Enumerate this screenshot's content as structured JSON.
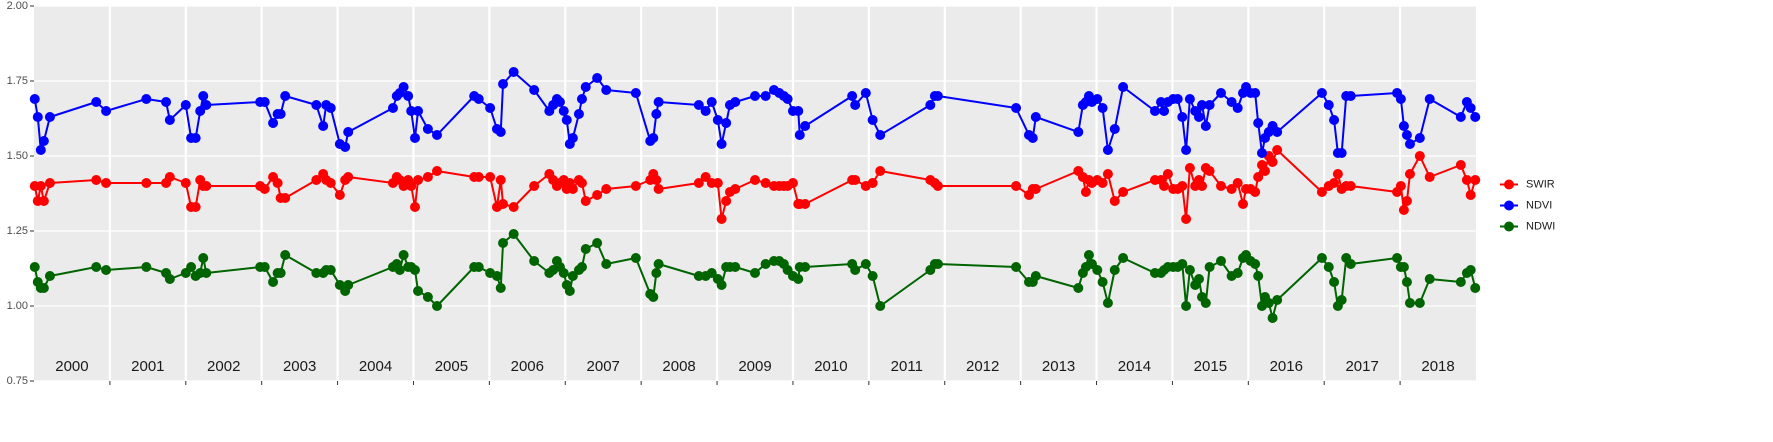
{
  "chart_data": {
    "type": "line",
    "x": [
      2000.01,
      2000.05,
      2000.09,
      2000.13,
      2000.21,
      2000.82,
      2000.95,
      2001.48,
      2001.74,
      2001.79,
      2002.0,
      2002.07,
      2002.13,
      2002.19,
      2002.23,
      2002.27,
      2002.98,
      2003.04,
      2003.15,
      2003.21,
      2003.25,
      2003.31,
      2003.72,
      2003.81,
      2003.85,
      2003.91,
      2004.03,
      2004.1,
      2004.14,
      2004.73,
      2004.78,
      2004.82,
      2004.87,
      2004.93,
      2004.97,
      2005.02,
      2005.06,
      2005.19,
      2005.31,
      2005.8,
      2005.86,
      2006.01,
      2006.1,
      2006.15,
      2006.18,
      2006.32,
      2006.59,
      2006.79,
      2006.84,
      2006.89,
      2006.93,
      2006.98,
      2007.02,
      2007.06,
      2007.1,
      2007.18,
      2007.22,
      2007.27,
      2007.42,
      2007.54,
      2007.93,
      2008.12,
      2008.16,
      2008.2,
      2008.23,
      2008.76,
      2008.85,
      2008.93,
      2009.01,
      2009.06,
      2009.12,
      2009.17,
      2009.24,
      2009.5,
      2009.64,
      2009.75,
      2009.82,
      2009.88,
      2009.93,
      2010.0,
      2010.07,
      2010.09,
      2010.16,
      2010.78,
      2010.82,
      2010.96,
      2011.05,
      2011.15,
      2011.81,
      2011.87,
      2011.91,
      2012.94,
      2013.11,
      2013.16,
      2013.2,
      2013.76,
      2013.82,
      2013.86,
      2013.9,
      2013.94,
      2014.01,
      2014.08,
      2014.15,
      2014.24,
      2014.35,
      2014.77,
      2014.85,
      2014.89,
      2014.94,
      2015.01,
      2015.07,
      2015.13,
      2015.18,
      2015.23,
      2015.3,
      2015.35,
      2015.39,
      2015.44,
      2015.49,
      2015.64,
      2015.78,
      2015.86,
      2015.93,
      2015.97,
      2016.03,
      2016.09,
      2016.13,
      2016.18,
      2016.22,
      2016.27,
      2016.32,
      2016.38,
      2016.97,
      2017.06,
      2017.13,
      2017.18,
      2017.23,
      2017.29,
      2017.35,
      2017.96,
      2018.01,
      2018.05,
      2018.09,
      2018.13,
      2018.26,
      2018.39,
      2018.8,
      2018.88,
      2018.93,
      2018.99
    ],
    "series": [
      {
        "name": "SWIR",
        "color": "#ff0000",
        "values": [
          1.4,
          1.35,
          1.4,
          1.35,
          1.41,
          1.42,
          1.41,
          1.41,
          1.41,
          1.43,
          1.41,
          1.33,
          1.33,
          1.42,
          1.4,
          1.4,
          1.4,
          1.39,
          1.43,
          1.41,
          1.36,
          1.36,
          1.42,
          1.44,
          1.42,
          1.41,
          1.37,
          1.42,
          1.43,
          1.41,
          1.43,
          1.42,
          1.4,
          1.42,
          1.4,
          1.33,
          1.42,
          1.43,
          1.45,
          1.43,
          1.43,
          1.43,
          1.33,
          1.42,
          1.34,
          1.33,
          1.4,
          1.44,
          1.42,
          1.4,
          1.41,
          1.42,
          1.39,
          1.41,
          1.39,
          1.42,
          1.41,
          1.35,
          1.37,
          1.39,
          1.4,
          1.42,
          1.44,
          1.42,
          1.39,
          1.41,
          1.43,
          1.41,
          1.41,
          1.29,
          1.35,
          1.38,
          1.39,
          1.42,
          1.41,
          1.4,
          1.4,
          1.4,
          1.4,
          1.41,
          1.34,
          1.34,
          1.34,
          1.42,
          1.42,
          1.4,
          1.41,
          1.45,
          1.42,
          1.41,
          1.4,
          1.4,
          1.37,
          1.39,
          1.39,
          1.45,
          1.43,
          1.38,
          1.42,
          1.41,
          1.42,
          1.41,
          1.44,
          1.35,
          1.38,
          1.42,
          1.42,
          1.4,
          1.44,
          1.39,
          1.39,
          1.4,
          1.29,
          1.46,
          1.4,
          1.42,
          1.4,
          1.46,
          1.45,
          1.4,
          1.39,
          1.41,
          1.34,
          1.39,
          1.39,
          1.38,
          1.43,
          1.47,
          1.45,
          1.5,
          1.48,
          1.52,
          1.38,
          1.4,
          1.41,
          1.44,
          1.39,
          1.4,
          1.4,
          1.38,
          1.4,
          1.32,
          1.35,
          1.44,
          1.5,
          1.43,
          1.47,
          1.42,
          1.37,
          1.42
        ]
      },
      {
        "name": "NDVI",
        "color": "#0000ff",
        "values": [
          1.69,
          1.63,
          1.52,
          1.55,
          1.63,
          1.68,
          1.65,
          1.69,
          1.68,
          1.62,
          1.67,
          1.56,
          1.56,
          1.65,
          1.7,
          1.67,
          1.68,
          1.68,
          1.61,
          1.64,
          1.64,
          1.7,
          1.67,
          1.6,
          1.67,
          1.66,
          1.54,
          1.53,
          1.58,
          1.66,
          1.7,
          1.71,
          1.73,
          1.7,
          1.65,
          1.56,
          1.65,
          1.59,
          1.57,
          1.7,
          1.69,
          1.66,
          1.59,
          1.58,
          1.74,
          1.78,
          1.72,
          1.65,
          1.67,
          1.69,
          1.68,
          1.65,
          1.62,
          1.54,
          1.56,
          1.64,
          1.69,
          1.73,
          1.76,
          1.72,
          1.71,
          1.55,
          1.56,
          1.64,
          1.68,
          1.67,
          1.65,
          1.68,
          1.62,
          1.54,
          1.61,
          1.67,
          1.68,
          1.7,
          1.7,
          1.72,
          1.71,
          1.7,
          1.69,
          1.65,
          1.65,
          1.57,
          1.6,
          1.7,
          1.67,
          1.71,
          1.62,
          1.57,
          1.67,
          1.7,
          1.7,
          1.66,
          1.57,
          1.56,
          1.63,
          1.58,
          1.67,
          1.68,
          1.7,
          1.68,
          1.69,
          1.66,
          1.52,
          1.59,
          1.73,
          1.65,
          1.68,
          1.65,
          1.68,
          1.69,
          1.69,
          1.63,
          1.52,
          1.69,
          1.65,
          1.63,
          1.67,
          1.6,
          1.67,
          1.71,
          1.68,
          1.66,
          1.71,
          1.73,
          1.71,
          1.71,
          1.61,
          1.51,
          1.56,
          1.58,
          1.6,
          1.58,
          1.71,
          1.67,
          1.62,
          1.51,
          1.51,
          1.7,
          1.7,
          1.71,
          1.69,
          1.6,
          1.57,
          1.54,
          1.56,
          1.69,
          1.63,
          1.68,
          1.66,
          1.63
        ]
      },
      {
        "name": "NDWI",
        "color": "#006400",
        "values": [
          1.13,
          1.08,
          1.06,
          1.06,
          1.1,
          1.13,
          1.12,
          1.13,
          1.11,
          1.09,
          1.11,
          1.13,
          1.1,
          1.11,
          1.16,
          1.11,
          1.13,
          1.13,
          1.08,
          1.11,
          1.11,
          1.17,
          1.11,
          1.11,
          1.12,
          1.12,
          1.07,
          1.05,
          1.07,
          1.13,
          1.14,
          1.12,
          1.17,
          1.13,
          1.13,
          1.12,
          1.05,
          1.03,
          1.0,
          1.13,
          1.13,
          1.11,
          1.1,
          1.06,
          1.21,
          1.24,
          1.15,
          1.11,
          1.12,
          1.15,
          1.13,
          1.11,
          1.07,
          1.05,
          1.1,
          1.12,
          1.13,
          1.19,
          1.21,
          1.14,
          1.16,
          1.04,
          1.03,
          1.11,
          1.14,
          1.1,
          1.1,
          1.11,
          1.09,
          1.07,
          1.13,
          1.13,
          1.13,
          1.11,
          1.14,
          1.15,
          1.15,
          1.14,
          1.12,
          1.1,
          1.09,
          1.13,
          1.13,
          1.14,
          1.12,
          1.14,
          1.1,
          1.0,
          1.12,
          1.14,
          1.14,
          1.13,
          1.08,
          1.08,
          1.1,
          1.06,
          1.11,
          1.13,
          1.17,
          1.14,
          1.12,
          1.08,
          1.01,
          1.12,
          1.16,
          1.11,
          1.11,
          1.12,
          1.13,
          1.13,
          1.13,
          1.14,
          1.0,
          1.12,
          1.07,
          1.09,
          1.03,
          1.01,
          1.13,
          1.15,
          1.1,
          1.11,
          1.16,
          1.17,
          1.15,
          1.14,
          1.1,
          1.0,
          1.03,
          1.01,
          0.96,
          1.02,
          1.16,
          1.13,
          1.08,
          1.0,
          1.02,
          1.16,
          1.14,
          1.16,
          1.13,
          1.13,
          1.08,
          1.01,
          1.01,
          1.09,
          1.08,
          1.11,
          1.12,
          1.06
        ]
      }
    ],
    "xlim": [
      2000,
      2019
    ],
    "xticks": [
      2001,
      2002,
      2003,
      2004,
      2005,
      2006,
      2007,
      2008,
      2009,
      2010,
      2011,
      2012,
      2013,
      2014,
      2015,
      2016,
      2017,
      2018
    ],
    "year_labels": [
      "2000",
      "2001",
      "2002",
      "2003",
      "2004",
      "2005",
      "2006",
      "2007",
      "2008",
      "2009",
      "2010",
      "2011",
      "2012",
      "2013",
      "2014",
      "2015",
      "2016",
      "2017",
      "2018"
    ],
    "ylim": [
      0.75,
      2
    ],
    "yticks": [
      {
        "value": 0.75,
        "label": "0.75"
      },
      {
        "value": 1,
        "label": "1.00"
      },
      1.25,
      {
        "value": 1.5,
        "label": "1.50"
      },
      1.75,
      {
        "value": 2,
        "label": "2.00"
      }
    ],
    "grid": true,
    "legend": "right"
  }
}
